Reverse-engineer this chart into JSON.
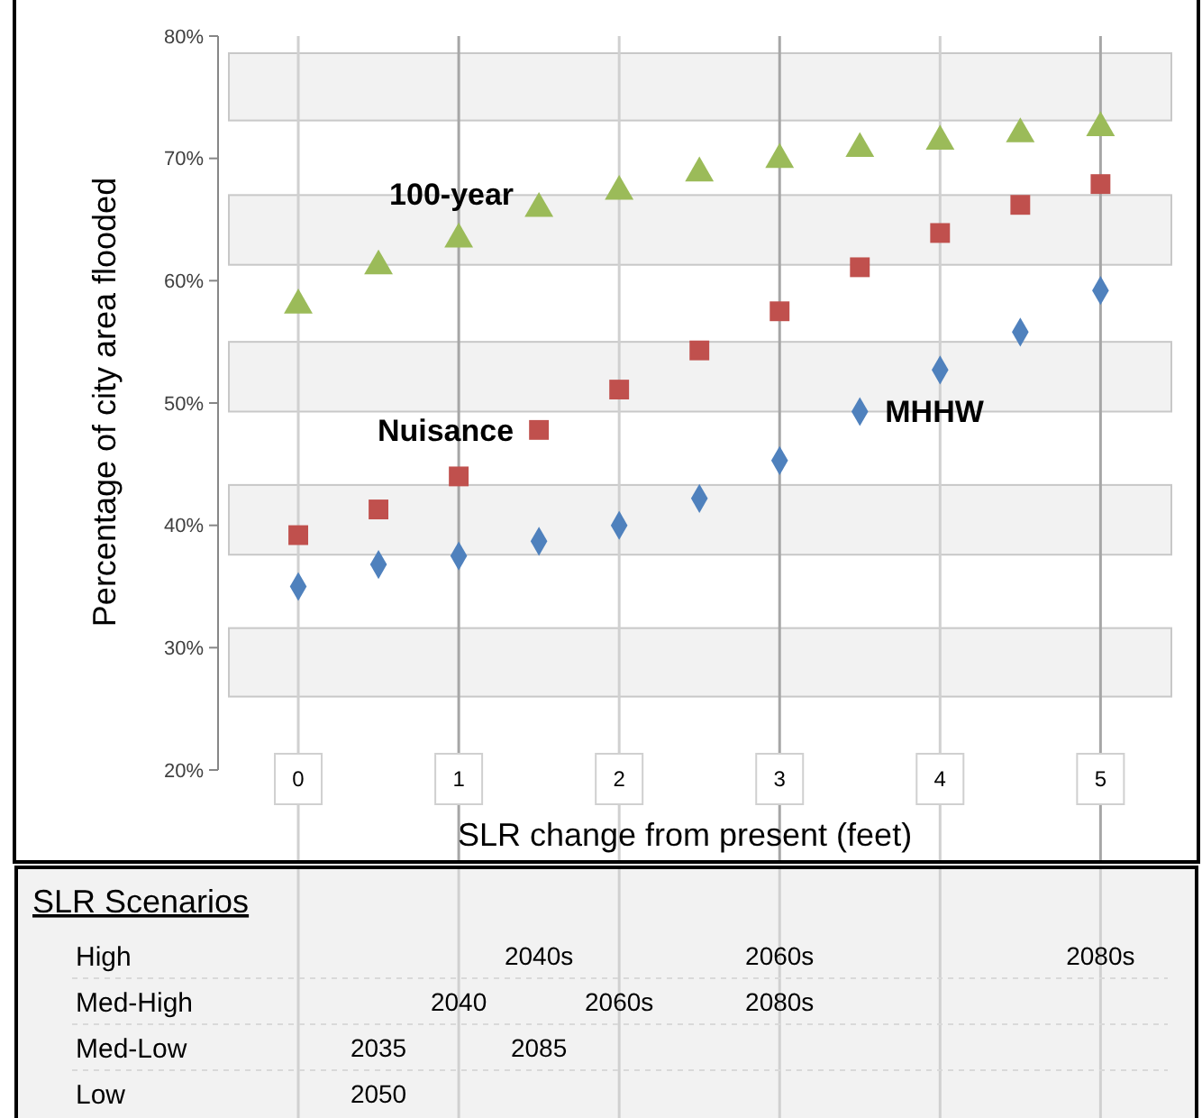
{
  "chart_data": [
    {
      "type": "scatter",
      "xlabel": "SLR change from present (feet)",
      "ylabel": "Percentage of city area flooded",
      "x": [
        0,
        0.5,
        1,
        1.5,
        2,
        2.5,
        3,
        3.5,
        4,
        4.5,
        5
      ],
      "series": [
        {
          "name": "MHHW",
          "color": "#4f81bd",
          "marker": "diamond",
          "values": [
            35,
            36.8,
            37.5,
            38.7,
            40,
            42.2,
            45.3,
            49.3,
            52.7,
            55.8,
            59.2
          ]
        },
        {
          "name": "Nuisance",
          "color": "#c0504d",
          "marker": "square",
          "values": [
            39.2,
            41.3,
            44,
            47.8,
            51.1,
            54.3,
            57.5,
            61.1,
            63.9,
            66.2,
            67.9
          ]
        },
        {
          "name": "100-year",
          "color": "#9bbb59",
          "marker": "triangle",
          "values": [
            58,
            61.2,
            63.4,
            65.9,
            67.3,
            68.8,
            69.9,
            70.8,
            71.4,
            72,
            72.5
          ]
        }
      ],
      "xlim": [
        -0.5,
        5.61
      ],
      "xticks": [
        0,
        1,
        2,
        3,
        4,
        5
      ],
      "ylim": [
        20,
        80
      ],
      "yticks": [
        {
          "value": 20,
          "label": "20%"
        },
        {
          "value": 30,
          "label": "30%"
        },
        {
          "value": 40,
          "label": "40%"
        },
        {
          "value": 50,
          "label": "50%"
        },
        {
          "value": 60,
          "label": "60%"
        },
        {
          "value": 70,
          "label": "70%"
        },
        {
          "value": 80,
          "label": "80%"
        }
      ],
      "grid": "x",
      "bands": [
        {
          "axis": "y",
          "from": 26,
          "to": 31.6,
          "color": "#f2f2f2"
        },
        {
          "axis": "y",
          "from": 37.6,
          "to": 43.3,
          "color": "#f2f2f2"
        },
        {
          "axis": "y",
          "from": 49.3,
          "to": 55,
          "color": "#f2f2f2"
        },
        {
          "axis": "y",
          "from": 61.3,
          "to": 67,
          "color": "#f2f2f2"
        },
        {
          "axis": "y",
          "from": 73.1,
          "to": 78.6,
          "color": "#f2f2f2"
        }
      ]
    },
    {
      "type": "other",
      "title": "SLR Scenarios",
      "y_categories": [
        "High",
        "Med-High",
        "Med-Low",
        "Low"
      ],
      "annotations": [
        "2040s",
        "2060s",
        "2080s",
        "2040",
        "2060s",
        "2080s",
        "2035",
        "2085",
        "2050"
      ]
    }
  ]
}
